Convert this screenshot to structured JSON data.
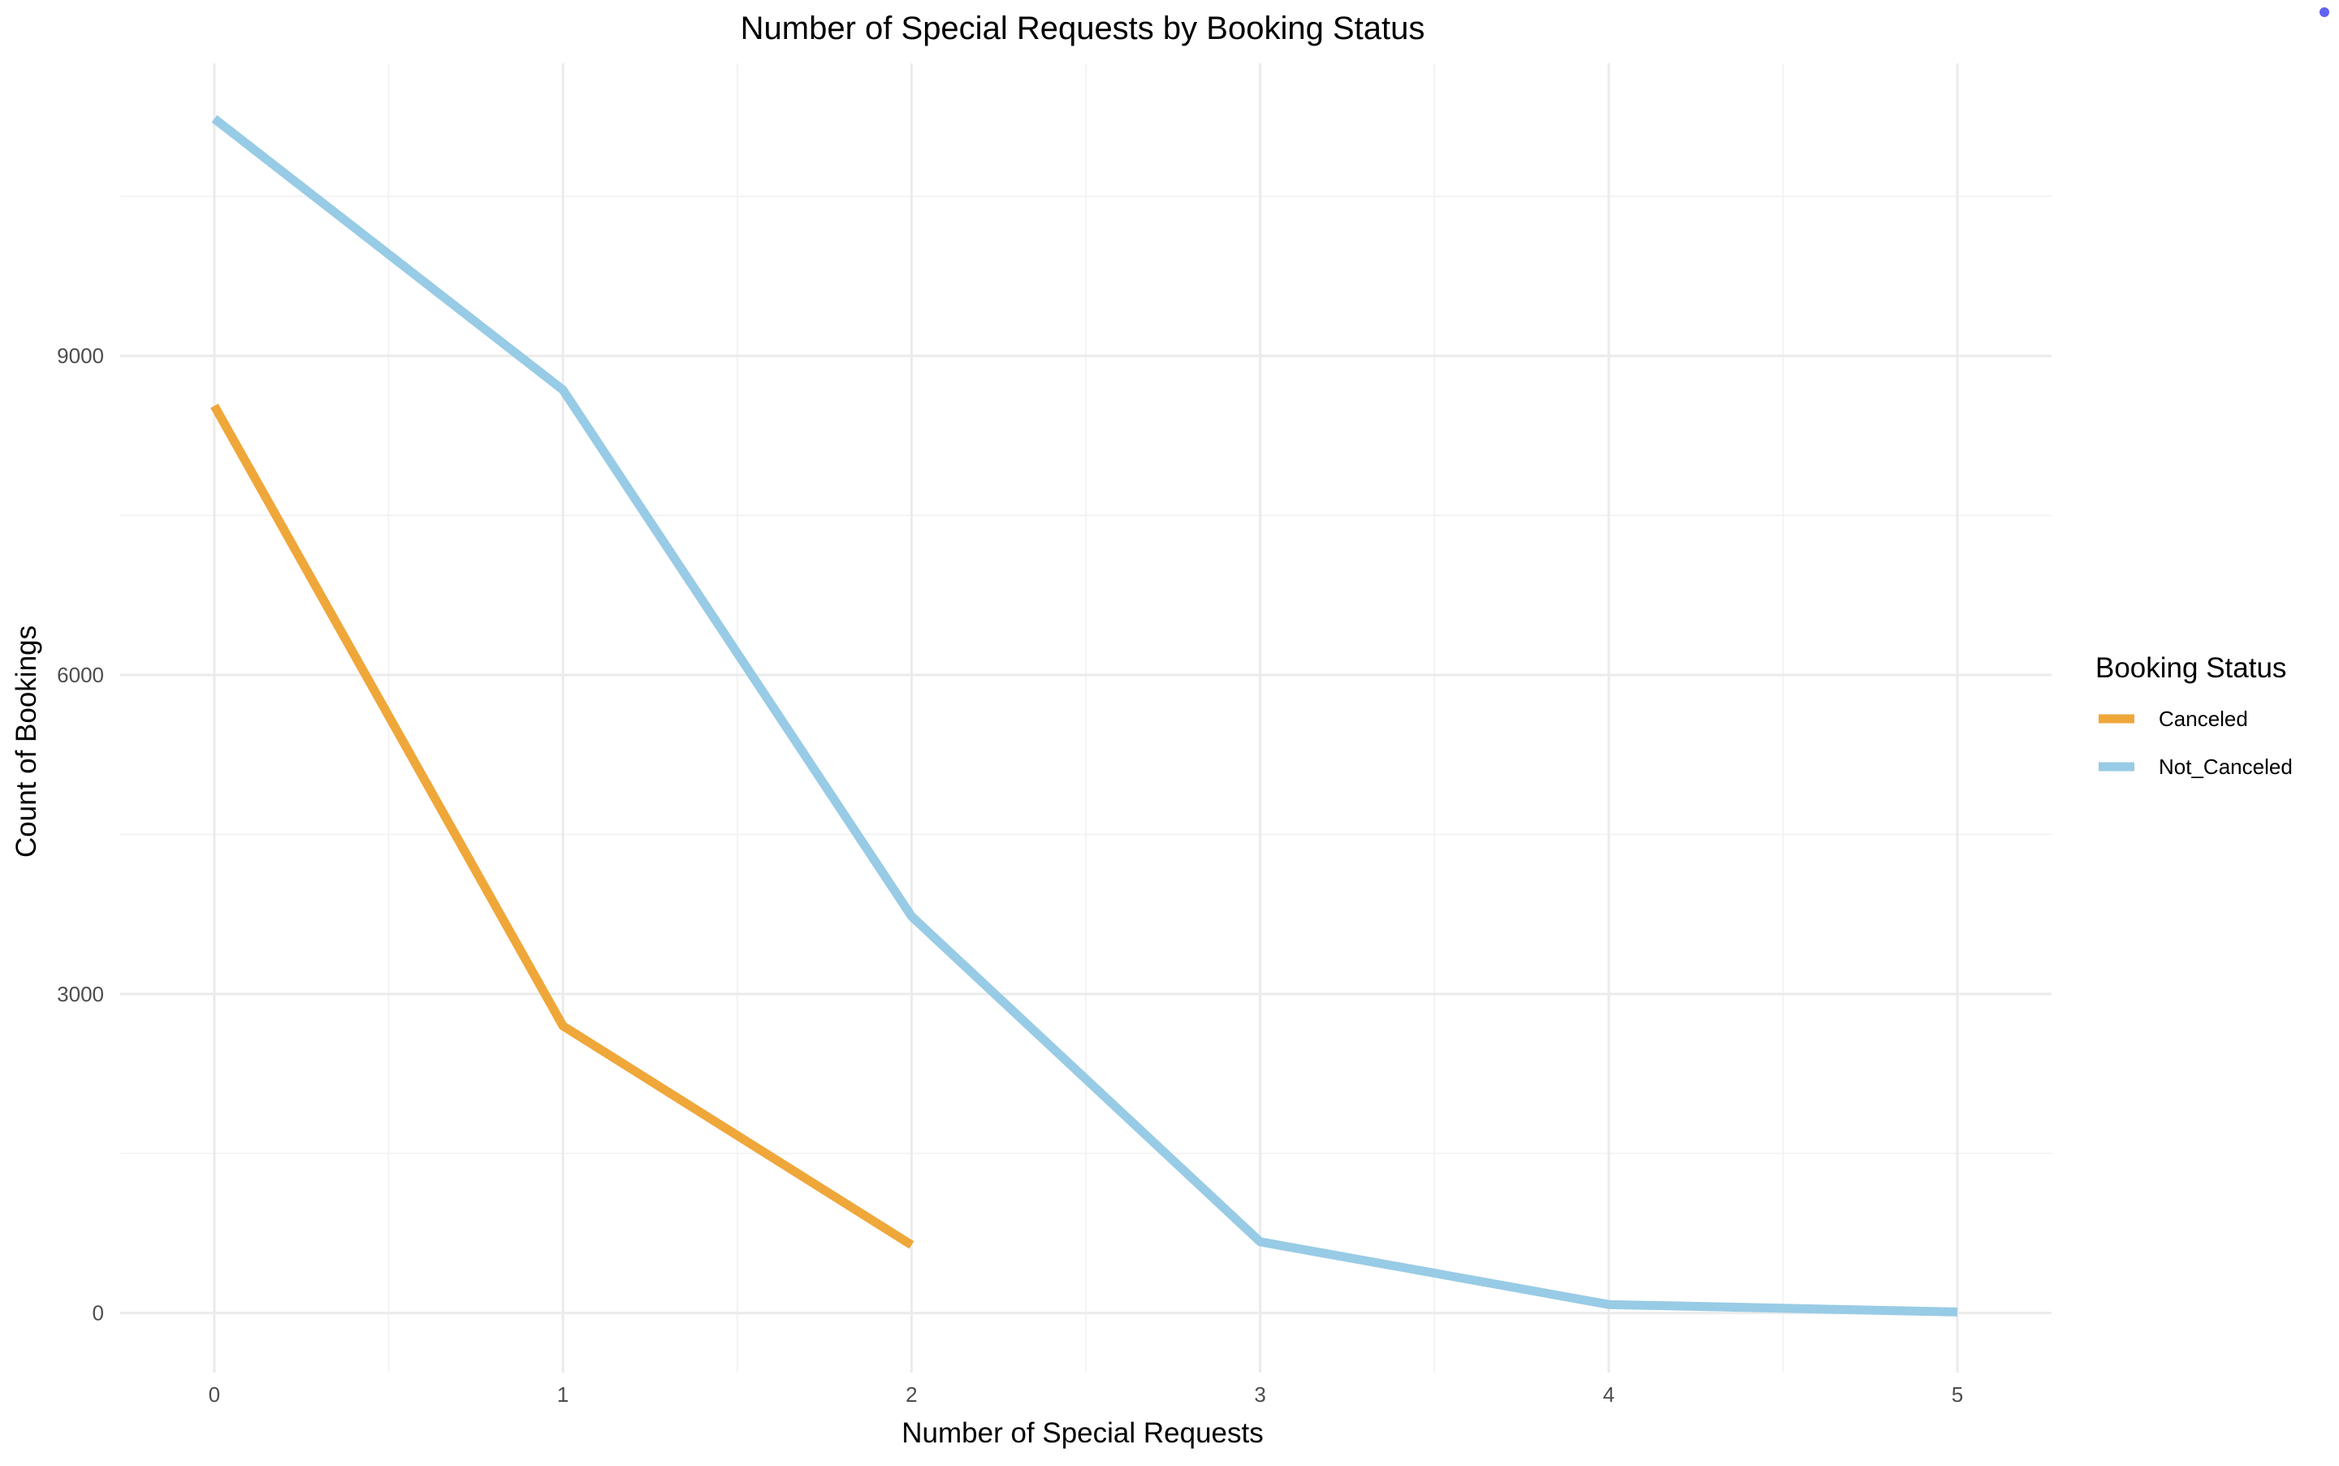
{
  "chart_data": {
    "type": "line",
    "title": "Number of Special Requests by Booking Status",
    "xlabel": "Number of Special Requests",
    "ylabel": "Count of Bookings",
    "x_ticks": [
      0,
      1,
      2,
      3,
      4,
      5
    ],
    "y_ticks": [
      0,
      3000,
      6000,
      9000
    ],
    "xlim": [
      -0.27,
      5.27
    ],
    "ylim": [
      -560,
      11750
    ],
    "grid": true,
    "legend": {
      "title": "Booking Status",
      "placement": "right"
    },
    "series": [
      {
        "name": "Canceled",
        "color": "#EFA73A",
        "x": [
          0,
          1,
          2
        ],
        "values": [
          8530,
          2700,
          640
        ]
      },
      {
        "name": "Not_Canceled",
        "color": "#98CBE5",
        "x": [
          0,
          1,
          2,
          3,
          4,
          5
        ],
        "values": [
          11230,
          8680,
          3730,
          670,
          80,
          10
        ]
      }
    ]
  },
  "indicator": {
    "name": "status-dot",
    "color": "#6262F2"
  }
}
